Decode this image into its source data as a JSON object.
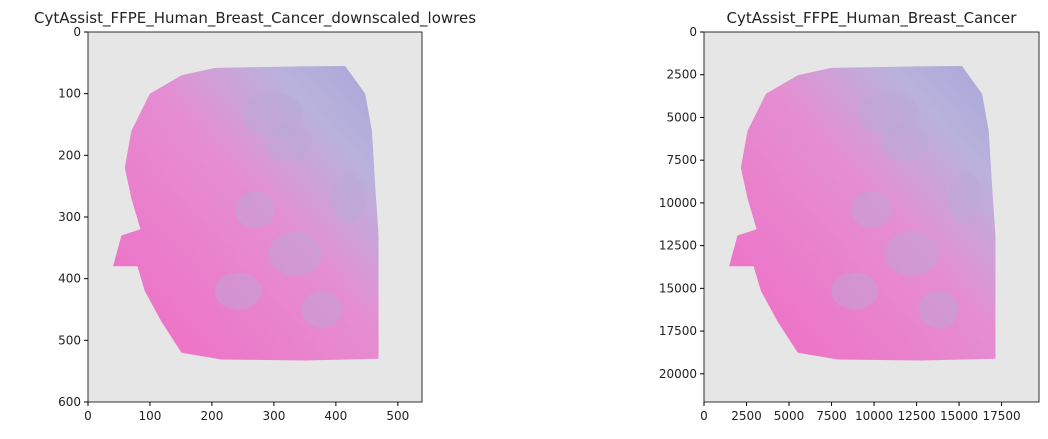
{
  "chart_data": [
    {
      "type": "image",
      "title": "CytAssist_FFPE_Human_Breast_Cancer_downscaled_lowres",
      "xlim": [
        0,
        539
      ],
      "ylim": [
        600,
        0
      ],
      "xticks": [
        0,
        100,
        200,
        300,
        400,
        500
      ],
      "yticks": [
        0,
        100,
        200,
        300,
        400,
        500,
        600
      ]
    },
    {
      "type": "image",
      "title": "CytAssist_FFPE_Human_Breast_Cancer",
      "xlim": [
        0,
        19700
      ],
      "ylim": [
        21650,
        0
      ],
      "xticks": [
        0,
        2500,
        5000,
        7500,
        10000,
        12500,
        15000,
        17500
      ],
      "yticks": [
        0,
        2500,
        5000,
        7500,
        10000,
        12500,
        15000,
        17500,
        20000
      ]
    }
  ]
}
